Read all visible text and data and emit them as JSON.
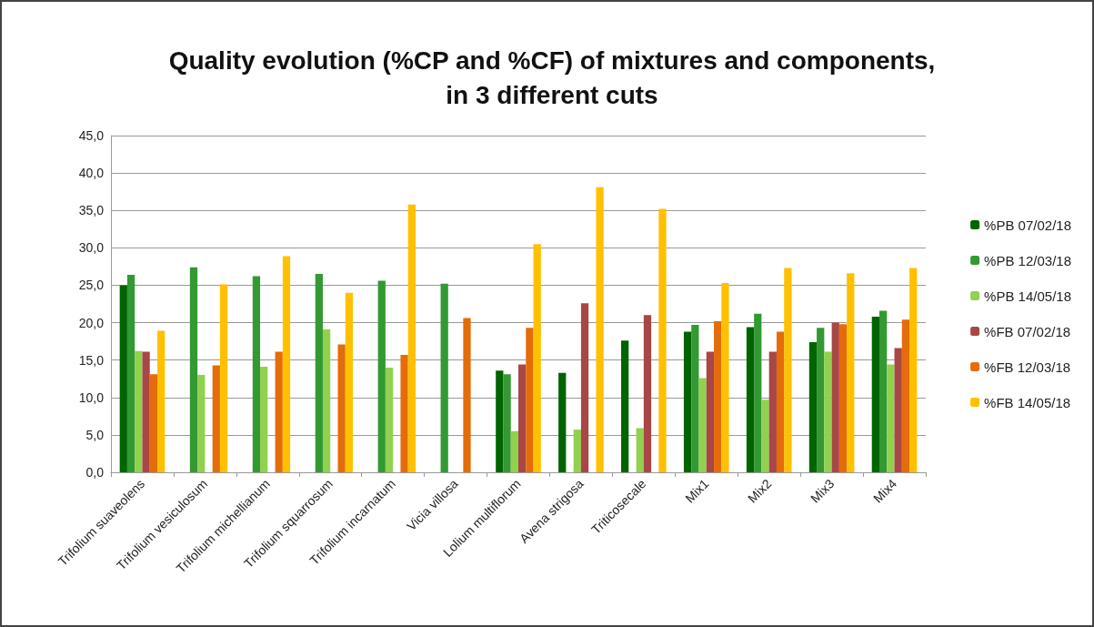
{
  "chart_data": {
    "type": "bar",
    "title": "Quality evolution (%CP and %CF) of mixtures and components,\nin 3 different cuts",
    "categories": [
      "Trifolium suaveolens",
      "Trifolium vesiculosum",
      "Trifolium michellianum",
      "Trifolium squarrosum",
      "Trifolium incarnatum",
      "Vicia villosa",
      "Lolium multiflorum",
      "Avena strigosa",
      "Triticosecale",
      "Mix1",
      "Mix2",
      "Mix3",
      "Mix4"
    ],
    "series": [
      {
        "name": "%PB 07/02/18",
        "color": "#006400",
        "values": [
          25.0,
          null,
          null,
          null,
          null,
          null,
          13.6,
          13.3,
          17.6,
          18.8,
          19.4,
          17.4,
          20.8
        ]
      },
      {
        "name": "%PB 12/03/18",
        "color": "#339933",
        "values": [
          26.4,
          27.4,
          26.2,
          26.5,
          25.6,
          25.2,
          13.1,
          null,
          null,
          19.7,
          21.2,
          19.3,
          21.6
        ]
      },
      {
        "name": "%PB 14/05/18",
        "color": "#92d050",
        "values": [
          16.2,
          13.0,
          14.1,
          19.1,
          14.0,
          null,
          5.5,
          5.7,
          5.9,
          12.6,
          9.7,
          16.1,
          14.4
        ]
      },
      {
        "name": "%FB 07/02/18",
        "color": "#a94646",
        "values": [
          16.1,
          null,
          null,
          null,
          null,
          null,
          14.4,
          22.6,
          21.0,
          16.1,
          16.1,
          20.0,
          16.6
        ]
      },
      {
        "name": "%FB 12/03/18",
        "color": "#e46c0a",
        "values": [
          13.1,
          14.3,
          16.1,
          17.1,
          15.7,
          20.6,
          19.3,
          null,
          null,
          20.2,
          18.8,
          19.8,
          20.4
        ]
      },
      {
        "name": "%FB 14/05/18",
        "color": "#ffc000",
        "values": [
          18.9,
          25.1,
          28.9,
          24.0,
          35.8,
          null,
          30.5,
          38.1,
          35.2,
          25.3,
          27.3,
          26.6,
          27.3
        ]
      }
    ],
    "ylim": [
      0,
      45
    ],
    "yticks": [
      {
        "value": 0,
        "label": "0,0"
      },
      {
        "value": 5,
        "label": "5,0"
      },
      {
        "value": 10,
        "label": "10,0"
      },
      {
        "value": 15,
        "label": "15,0"
      },
      {
        "value": 20,
        "label": "20,0"
      },
      {
        "value": 25,
        "label": "25,0"
      },
      {
        "value": 30,
        "label": "30,0"
      },
      {
        "value": 35,
        "label": "35,0"
      },
      {
        "value": 40,
        "label": "40,0"
      },
      {
        "value": 45,
        "label": "45,0"
      }
    ],
    "grid": "y",
    "legend": "right"
  }
}
